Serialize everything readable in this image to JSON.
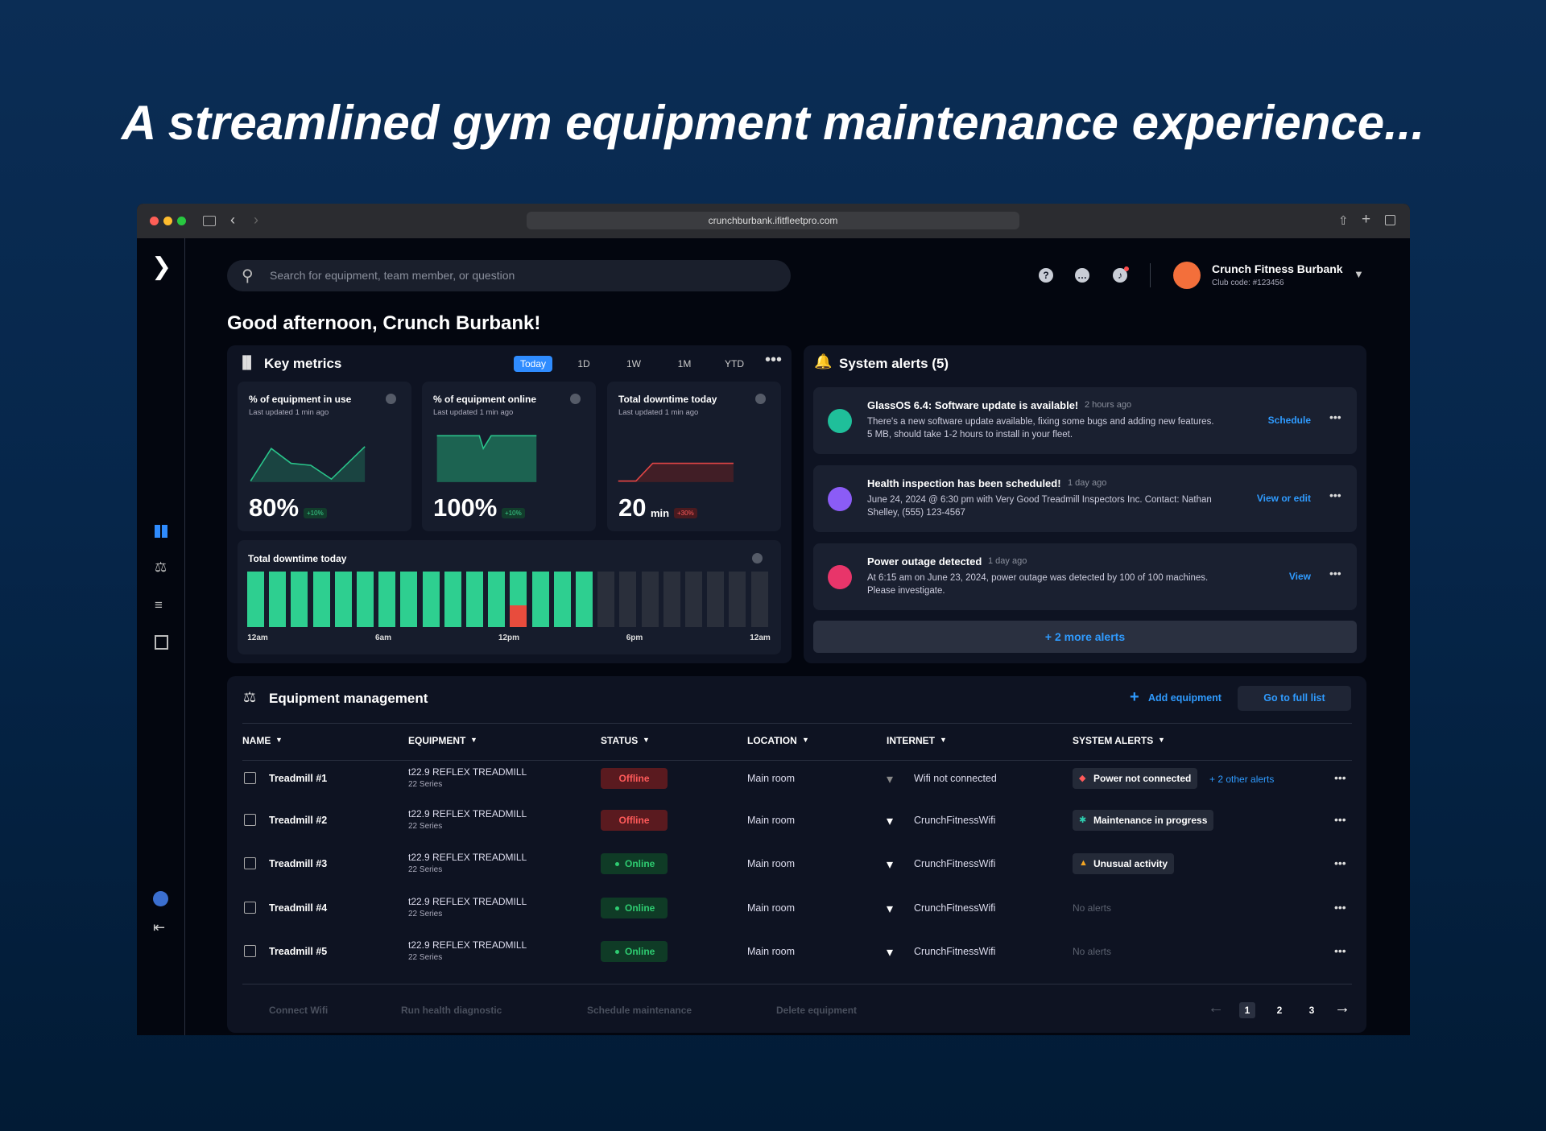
{
  "headline": "A streamlined gym equipment maintenance experience...",
  "browser": {
    "url": "crunchburbank.ifitfleetpro.com"
  },
  "header": {
    "search_placeholder": "Search for equipment, team member, or question",
    "club_name": "Crunch Fitness Burbank",
    "club_code": "Club code: #123456"
  },
  "greeting": "Good afternoon, Crunch Burbank!",
  "key_metrics": {
    "title": "Key metrics",
    "ranges": [
      "Today",
      "1D",
      "1W",
      "1M",
      "YTD"
    ],
    "cards": [
      {
        "title": "% of equipment in use",
        "updated": "Last updated 1 min ago",
        "value": "80%",
        "change": "+10%"
      },
      {
        "title": "% of equipment online",
        "updated": "Last updated 1 min ago",
        "value": "100%",
        "change": "+10%"
      },
      {
        "title": "Total downtime today",
        "updated": "Last updated 1 min ago",
        "value": "20",
        "unit": "min",
        "change": "+30%"
      }
    ],
    "downtime": {
      "title": "Total downtime today",
      "x_labels": [
        "12am",
        "6am",
        "12pm",
        "6pm",
        "12am"
      ]
    }
  },
  "system_alerts": {
    "title": "System alerts (5)",
    "alerts": [
      {
        "title": "GlassOS 6.4: Software update is available!",
        "time": "2 hours ago",
        "text": "There's a new software update available, fixing some bugs and adding new features. 5 MB, should take 1-2 hours to install in your fleet.",
        "action": "Schedule"
      },
      {
        "title": "Health inspection has been scheduled!",
        "time": "1 day ago",
        "text": "June 24, 2024 @ 6:30 pm with Very Good Treadmill Inspectors Inc. Contact: Nathan Shelley, (555) 123-4567",
        "action": "View or edit"
      },
      {
        "title": "Power outage detected",
        "time": "1 day ago",
        "text": "At 6:15 am on June 23, 2024, power outage was detected by 100 of 100 machines. Please investigate.",
        "action": "View"
      }
    ],
    "more": "+ 2 more alerts"
  },
  "equipment": {
    "title": "Equipment management",
    "add": "Add equipment",
    "full_list": "Go to full list",
    "columns": [
      "NAME",
      "EQUIPMENT",
      "STATUS",
      "LOCATION",
      "INTERNET",
      "SYSTEM ALERTS"
    ],
    "rows": [
      {
        "name": "Treadmill #1",
        "equipment": "t22.9 REFLEX TREADMILL",
        "series": "22 Series",
        "status": "Offline",
        "location": "Main room",
        "internet": "Wifi not connected",
        "alert": "Power not connected",
        "extra": "+ 2 other alerts"
      },
      {
        "name": "Treadmill #2",
        "equipment": "t22.9 REFLEX TREADMILL",
        "series": "22 Series",
        "status": "Offline",
        "location": "Main room",
        "internet": "CrunchFitnessWifi",
        "alert": "Maintenance in progress"
      },
      {
        "name": "Treadmill #3",
        "equipment": "t22.9 REFLEX TREADMILL",
        "series": "22 Series",
        "status": "Online",
        "location": "Main room",
        "internet": "CrunchFitnessWifi",
        "alert": "Unusual activity"
      },
      {
        "name": "Treadmill #4",
        "equipment": "t22.9 REFLEX TREADMILL",
        "series": "22 Series",
        "status": "Online",
        "location": "Main room",
        "internet": "CrunchFitnessWifi",
        "alert": "No alerts"
      },
      {
        "name": "Treadmill #5",
        "equipment": "t22.9 REFLEX TREADMILL",
        "series": "22 Series",
        "status": "Online",
        "location": "Main room",
        "internet": "CrunchFitnessWifi",
        "alert": "No alerts"
      }
    ],
    "actions": [
      "Connect Wifi",
      "Run health diagnostic",
      "Schedule maintenance",
      "Delete equipment"
    ],
    "pages": [
      "1",
      "2",
      "3"
    ]
  }
}
